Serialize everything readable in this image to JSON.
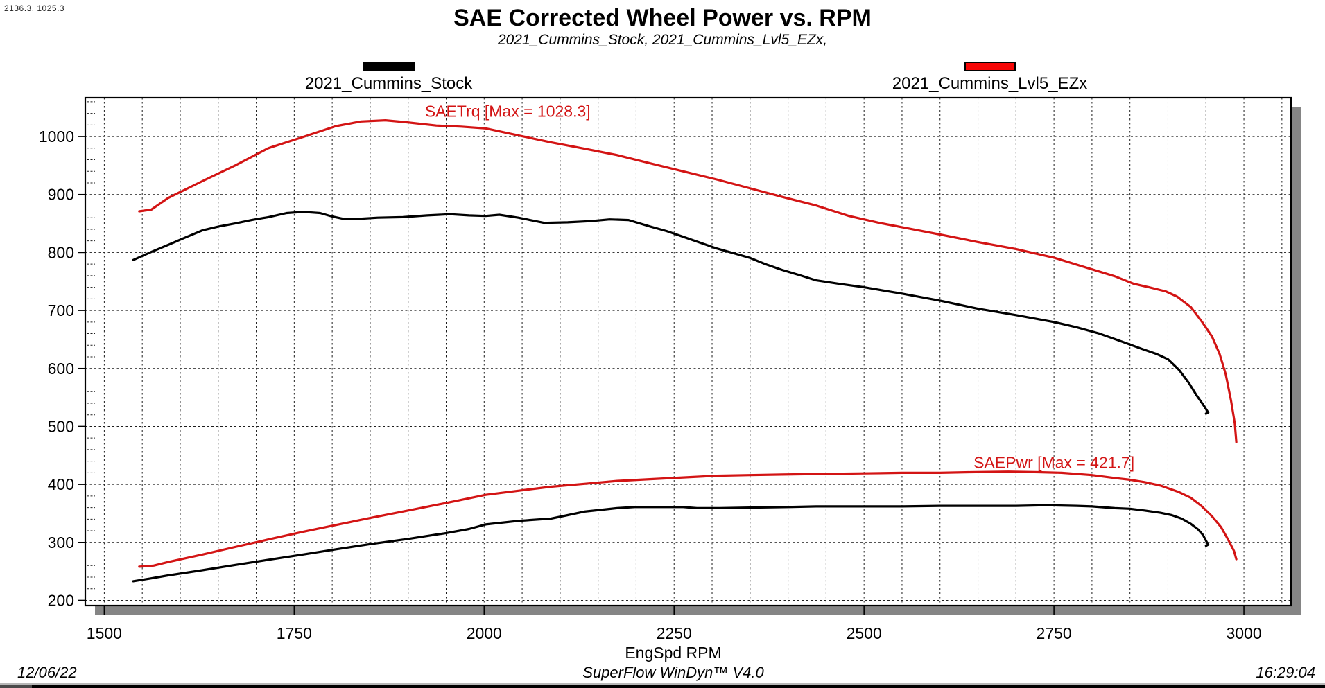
{
  "cursor_position": "2136.3, 1025.3",
  "header": {
    "title": "SAE Corrected Wheel Power vs. RPM",
    "subtitle": "2021_Cummins_Stock, 2021_Cummins_Lvl5_EZx,"
  },
  "legend": [
    {
      "label": "2021_Cummins_Stock",
      "color": "#000000"
    },
    {
      "label": "2021_Cummins_Lvl5_EZx",
      "color": "#f60606"
    }
  ],
  "footer": {
    "date": "12/06/22",
    "app": "SuperFlow WinDyn™ V4.0",
    "time": "16:29:04"
  },
  "chart_data": {
    "type": "line",
    "title": "SAE Corrected Wheel Power vs. RPM",
    "xlabel": "EngSpd RPM",
    "ylabel": "",
    "xlim": [
      1475,
      3062
    ],
    "ylim": [
      191,
      1067
    ],
    "x_ticks": [
      1500,
      1750,
      2000,
      2250,
      2500,
      2750,
      3000
    ],
    "y_ticks": [
      200,
      300,
      400,
      500,
      600,
      700,
      800,
      900,
      1000
    ],
    "x_minor_step": 50,
    "y_minor_step": 20,
    "grid": "dashed",
    "colors": {
      "stock": "#000000",
      "ezx": "#d31414",
      "shadow": "#858585",
      "grid": "#1c1c1c"
    },
    "annotations": [
      {
        "text": "SAETrq [Max = 1028.3]",
        "x": 2031,
        "y": 1034,
        "color": "#d31414"
      },
      {
        "text": "SAEPwr [Max = 421.7]",
        "x": 2750,
        "y": 428,
        "color": "#d31414"
      }
    ],
    "series": [
      {
        "name": "SAETrq_2021_Cummins_Lvl5_EZx",
        "color": "#d31414",
        "points": [
          [
            1546,
            871
          ],
          [
            1562,
            874
          ],
          [
            1584,
            894
          ],
          [
            1629,
            923
          ],
          [
            1672,
            950
          ],
          [
            1716,
            980
          ],
          [
            1761,
            999
          ],
          [
            1805,
            1018
          ],
          [
            1838,
            1026
          ],
          [
            1870,
            1028
          ],
          [
            1895,
            1025
          ],
          [
            1937,
            1019
          ],
          [
            1970,
            1017
          ],
          [
            2002,
            1014
          ],
          [
            2045,
            1002
          ],
          [
            2088,
            990
          ],
          [
            2132,
            979
          ],
          [
            2175,
            968
          ],
          [
            2218,
            954
          ],
          [
            2262,
            940
          ],
          [
            2306,
            926
          ],
          [
            2349,
            911
          ],
          [
            2392,
            896
          ],
          [
            2437,
            881
          ],
          [
            2480,
            863
          ],
          [
            2520,
            851
          ],
          [
            2560,
            841
          ],
          [
            2600,
            831
          ],
          [
            2650,
            818
          ],
          [
            2700,
            806
          ],
          [
            2750,
            791
          ],
          [
            2800,
            771
          ],
          [
            2830,
            759
          ],
          [
            2855,
            746
          ],
          [
            2875,
            740
          ],
          [
            2897,
            733
          ],
          [
            2912,
            724
          ],
          [
            2930,
            706
          ],
          [
            2945,
            680
          ],
          [
            2958,
            655
          ],
          [
            2968,
            625
          ],
          [
            2976,
            590
          ],
          [
            2983,
            545
          ],
          [
            2988,
            505
          ],
          [
            2990,
            473
          ]
        ]
      },
      {
        "name": "SAETrq_2021_Cummins_Stock",
        "color": "#000000",
        "points": [
          [
            1538,
            787
          ],
          [
            1562,
            801
          ],
          [
            1584,
            813
          ],
          [
            1607,
            826
          ],
          [
            1629,
            838
          ],
          [
            1651,
            845
          ],
          [
            1672,
            850
          ],
          [
            1694,
            856
          ],
          [
            1716,
            861
          ],
          [
            1740,
            868
          ],
          [
            1762,
            870
          ],
          [
            1784,
            868
          ],
          [
            1800,
            862
          ],
          [
            1815,
            858
          ],
          [
            1835,
            858
          ],
          [
            1860,
            860
          ],
          [
            1893,
            861
          ],
          [
            1925,
            864
          ],
          [
            1955,
            866
          ],
          [
            1980,
            864
          ],
          [
            2002,
            863
          ],
          [
            2020,
            865
          ],
          [
            2045,
            860
          ],
          [
            2079,
            851
          ],
          [
            2110,
            852
          ],
          [
            2140,
            854
          ],
          [
            2165,
            857
          ],
          [
            2190,
            856
          ],
          [
            2218,
            845
          ],
          [
            2240,
            837
          ],
          [
            2262,
            827
          ],
          [
            2306,
            807
          ],
          [
            2328,
            799
          ],
          [
            2349,
            791
          ],
          [
            2370,
            780
          ],
          [
            2392,
            770
          ],
          [
            2415,
            761
          ],
          [
            2437,
            752
          ],
          [
            2467,
            746
          ],
          [
            2500,
            740
          ],
          [
            2550,
            729
          ],
          [
            2600,
            717
          ],
          [
            2650,
            703
          ],
          [
            2700,
            692
          ],
          [
            2750,
            680
          ],
          [
            2780,
            671
          ],
          [
            2810,
            660
          ],
          [
            2840,
            646
          ],
          [
            2865,
            634
          ],
          [
            2885,
            625
          ],
          [
            2900,
            616
          ],
          [
            2915,
            597
          ],
          [
            2928,
            574
          ],
          [
            2938,
            553
          ],
          [
            2946,
            538
          ],
          [
            2951,
            528
          ],
          [
            2953,
            524
          ],
          [
            2950,
            522
          ]
        ]
      },
      {
        "name": "SAEPwr_2021_Cummins_Lvl5_EZx",
        "color": "#d31414",
        "points": [
          [
            1546,
            258
          ],
          [
            1565,
            260
          ],
          [
            1584,
            266
          ],
          [
            1629,
            279
          ],
          [
            1672,
            292
          ],
          [
            1716,
            305
          ],
          [
            1761,
            318
          ],
          [
            1805,
            330
          ],
          [
            1850,
            342
          ],
          [
            1900,
            355
          ],
          [
            1950,
            368
          ],
          [
            2002,
            382
          ],
          [
            2045,
            389
          ],
          [
            2088,
            396
          ],
          [
            2132,
            401
          ],
          [
            2175,
            406
          ],
          [
            2218,
            409
          ],
          [
            2262,
            412
          ],
          [
            2306,
            415
          ],
          [
            2349,
            416
          ],
          [
            2392,
            417
          ],
          [
            2437,
            418
          ],
          [
            2500,
            419
          ],
          [
            2550,
            420
          ],
          [
            2600,
            420
          ],
          [
            2640,
            421
          ],
          [
            2690,
            422
          ],
          [
            2730,
            421
          ],
          [
            2760,
            420
          ],
          [
            2800,
            416
          ],
          [
            2830,
            411
          ],
          [
            2850,
            408
          ],
          [
            2869,
            404
          ],
          [
            2890,
            398
          ],
          [
            2914,
            387
          ],
          [
            2930,
            377
          ],
          [
            2944,
            363
          ],
          [
            2958,
            345
          ],
          [
            2970,
            326
          ],
          [
            2980,
            303
          ],
          [
            2987,
            285
          ],
          [
            2990,
            271
          ]
        ]
      },
      {
        "name": "SAEPwr_2021_Cummins_Stock",
        "color": "#000000",
        "points": [
          [
            1538,
            233
          ],
          [
            1562,
            238
          ],
          [
            1584,
            243
          ],
          [
            1629,
            252
          ],
          [
            1672,
            261
          ],
          [
            1716,
            270
          ],
          [
            1761,
            279
          ],
          [
            1805,
            288
          ],
          [
            1850,
            297
          ],
          [
            1900,
            306
          ],
          [
            1950,
            316
          ],
          [
            1980,
            323
          ],
          [
            2002,
            331
          ],
          [
            2045,
            337
          ],
          [
            2088,
            341
          ],
          [
            2110,
            347
          ],
          [
            2132,
            353
          ],
          [
            2160,
            357
          ],
          [
            2175,
            359
          ],
          [
            2198,
            361
          ],
          [
            2230,
            361
          ],
          [
            2262,
            361
          ],
          [
            2280,
            359
          ],
          [
            2310,
            359
          ],
          [
            2349,
            360
          ],
          [
            2400,
            361
          ],
          [
            2437,
            362
          ],
          [
            2500,
            362
          ],
          [
            2550,
            362
          ],
          [
            2600,
            363
          ],
          [
            2650,
            363
          ],
          [
            2700,
            363
          ],
          [
            2740,
            364
          ],
          [
            2780,
            363
          ],
          [
            2800,
            362
          ],
          [
            2830,
            359
          ],
          [
            2850,
            358
          ],
          [
            2869,
            355
          ],
          [
            2890,
            351
          ],
          [
            2905,
            347
          ],
          [
            2918,
            341
          ],
          [
            2930,
            332
          ],
          [
            2940,
            322
          ],
          [
            2946,
            313
          ],
          [
            2950,
            303
          ],
          [
            2953,
            296
          ],
          [
            2950,
            294
          ]
        ]
      }
    ]
  }
}
